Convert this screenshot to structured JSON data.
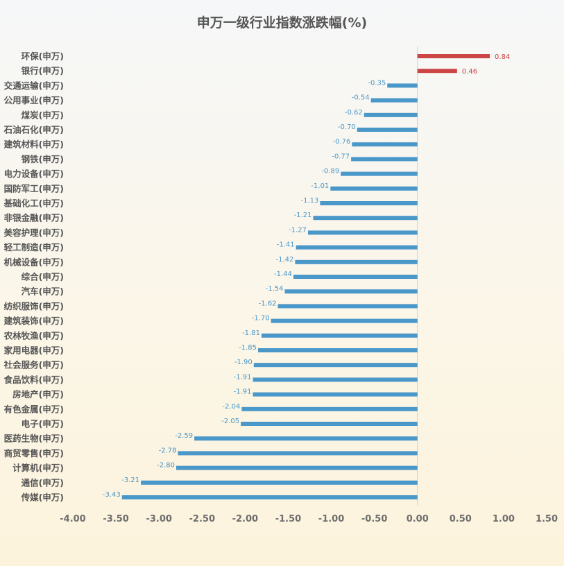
{
  "chart_data": {
    "type": "bar",
    "orientation": "horizontal",
    "title": "申万一级行业指数涨跌幅(%)",
    "xlim": [
      -4.0,
      1.5
    ],
    "x_ticks": [
      "-4.00",
      "-3.50",
      "-3.00",
      "-2.50",
      "-2.00",
      "-1.50",
      "-1.00",
      "-0.50",
      "0.00",
      "0.50",
      "1.00",
      "1.50"
    ],
    "grid": false,
    "legend": "none",
    "categories": [
      "环保(申万)",
      "银行(申万)",
      "交通运输(申万)",
      "公用事业(申万)",
      "煤炭(申万)",
      "石油石化(申万)",
      "建筑材料(申万)",
      "钢铁(申万)",
      "电力设备(申万)",
      "国防军工(申万)",
      "基础化工(申万)",
      "非银金融(申万)",
      "美容护理(申万)",
      "轻工制造(申万)",
      "机械设备(申万)",
      "综合(申万)",
      "汽车(申万)",
      "纺织服饰(申万)",
      "建筑装饰(申万)",
      "农林牧渔(申万)",
      "家用电器(申万)",
      "社会服务(申万)",
      "食品饮料(申万)",
      "房地产(申万)",
      "有色金属(申万)",
      "电子(申万)",
      "医药生物(申万)",
      "商贸零售(申万)",
      "计算机(申万)",
      "通信(申万)",
      "传媒(申万)"
    ],
    "values": [
      0.84,
      0.46,
      -0.35,
      -0.54,
      -0.62,
      -0.7,
      -0.76,
      -0.77,
      -0.89,
      -1.01,
      -1.13,
      -1.21,
      -1.27,
      -1.41,
      -1.42,
      -1.44,
      -1.54,
      -1.62,
      -1.7,
      -1.81,
      -1.85,
      -1.9,
      -1.91,
      -1.91,
      -2.04,
      -2.05,
      -2.59,
      -2.78,
      -2.8,
      -3.21,
      -3.43
    ],
    "value_labels": [
      "0.84",
      "0.46",
      "-0.35",
      "-0.54",
      "-0.62",
      "-0.70",
      "-0.76",
      "-0.77",
      "-0.89",
      "-1.01",
      "-1.13",
      "-1.21",
      "-1.27",
      "-1.41",
      "-1.42",
      "-1.44",
      "-1.54",
      "-1.62",
      "-1.70",
      "-1.81",
      "-1.85",
      "-1.90",
      "-1.91",
      "-1.91",
      "-2.04",
      "-2.05",
      "-2.59",
      "-2.78",
      "-2.80",
      "-3.21",
      "-3.43"
    ],
    "colors": {
      "positive": "#cc4444",
      "negative": "#4a97c9",
      "axis": "#d0d0d0"
    }
  }
}
